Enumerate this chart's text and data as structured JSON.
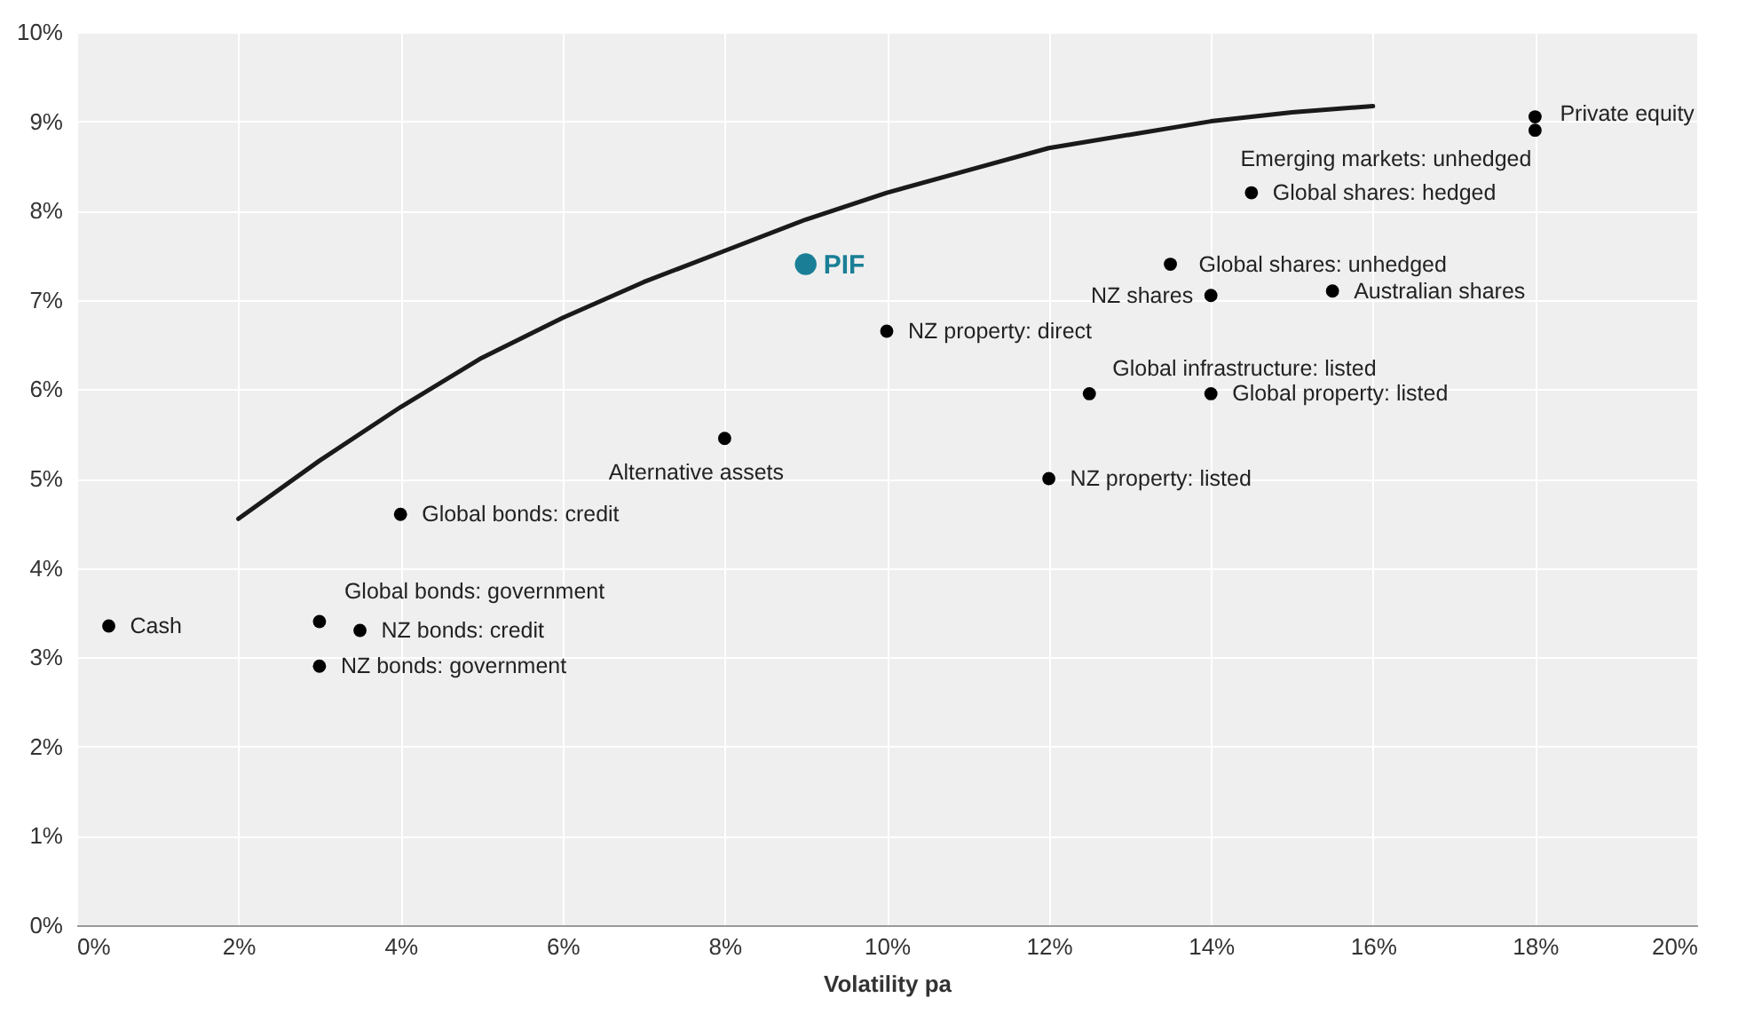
{
  "chart_data": {
    "type": "scatter",
    "xlabel": "Volatility pa",
    "xlim": [
      0,
      20
    ],
    "ylim": [
      0,
      10
    ],
    "xticks": [
      {
        "value": 0,
        "label": "0%"
      },
      {
        "value": 2,
        "label": "2%"
      },
      {
        "value": 4,
        "label": "4%"
      },
      {
        "value": 6,
        "label": "6%"
      },
      {
        "value": 8,
        "label": "8%"
      },
      {
        "value": 10,
        "label": "10%"
      },
      {
        "value": 12,
        "label": "12%"
      },
      {
        "value": 14,
        "label": "14%"
      },
      {
        "value": 16,
        "label": "16%"
      },
      {
        "value": 18,
        "label": "18%"
      },
      {
        "value": 20,
        "label": "20%"
      }
    ],
    "yticks": [
      {
        "value": 0,
        "label": "0%"
      },
      {
        "value": 1,
        "label": "1%"
      },
      {
        "value": 2,
        "label": "2%"
      },
      {
        "value": 3,
        "label": "3%"
      },
      {
        "value": 4,
        "label": "4%"
      },
      {
        "value": 5,
        "label": "5%"
      },
      {
        "value": 6,
        "label": "6%"
      },
      {
        "value": 7,
        "label": "7%"
      },
      {
        "value": 8,
        "label": "8%"
      },
      {
        "value": 9,
        "label": "9%"
      },
      {
        "value": 10,
        "label": "10%"
      }
    ],
    "grid": true,
    "series": [
      {
        "marker": "circle",
        "color": "#000000",
        "x": [
          0.4,
          3,
          3.5,
          3,
          4,
          8,
          10,
          12,
          12.5,
          14,
          13.5,
          14,
          15.5,
          14.5,
          18,
          18
        ],
        "values": [
          3.35,
          3.4,
          3.3,
          2.9,
          4.6,
          5.45,
          6.65,
          5.0,
          5.95,
          5.95,
          7.4,
          7.05,
          7.1,
          8.2,
          9.05,
          8.9
        ]
      },
      {
        "marker": "circle",
        "name": "PIF",
        "color": "#1a7f96",
        "x": [
          9
        ],
        "values": [
          7.4
        ]
      },
      {
        "type": "line",
        "color": "#1a1a1a",
        "x": [
          2,
          3,
          4,
          5,
          6,
          7,
          8,
          9,
          10,
          11,
          12,
          13,
          14,
          15,
          16
        ],
        "values": [
          4.55,
          5.2,
          5.8,
          6.35,
          6.8,
          7.2,
          7.55,
          7.9,
          8.2,
          8.45,
          8.7,
          8.85,
          9.0,
          9.1,
          9.17
        ]
      }
    ],
    "annotations": [
      {
        "text": "Cash",
        "x": 0.4,
        "y": 3.35
      },
      {
        "text": "Global bonds: government",
        "x": 3,
        "y": 3.4
      },
      {
        "text": "NZ bonds: credit",
        "x": 3.5,
        "y": 3.3
      },
      {
        "text": "NZ bonds: government",
        "x": 3,
        "y": 2.9
      },
      {
        "text": "Global bonds: credit",
        "x": 4,
        "y": 4.6
      },
      {
        "text": "Alternative assets",
        "x": 8,
        "y": 5.45
      },
      {
        "text": "NZ property: direct",
        "x": 10,
        "y": 6.65
      },
      {
        "text": "NZ property: listed",
        "x": 12,
        "y": 5.0
      },
      {
        "text": "Global infrastructure: listed",
        "x": 12.5,
        "y": 5.95
      },
      {
        "text": "Global property: listed",
        "x": 14,
        "y": 5.95
      },
      {
        "text": "Global shares: unhedged",
        "x": 13.5,
        "y": 7.4
      },
      {
        "text": "NZ shares",
        "x": 14,
        "y": 7.05
      },
      {
        "text": "Australian shares",
        "x": 15.5,
        "y": 7.1
      },
      {
        "text": "Global shares: hedged",
        "x": 14.5,
        "y": 8.2
      },
      {
        "text": "Private equity",
        "x": 18,
        "y": 9.05
      },
      {
        "text": "Emerging markets: unhedged",
        "x": 18,
        "y": 8.9
      }
    ]
  }
}
